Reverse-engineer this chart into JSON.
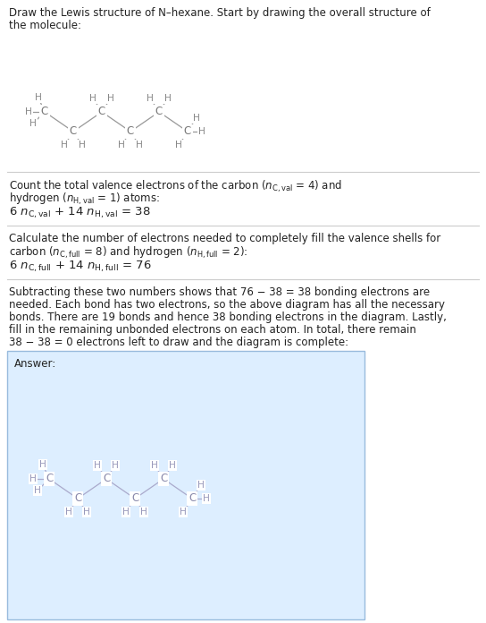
{
  "title": "Draw the Lewis structure of N-hexane. Start by drawing the overall structure of the molecule:",
  "s1_line1": "Count the total valence electrons of the carbon ($n_{\\mathrm{C,val}}$ = 4) and",
  "s1_line2": "hydrogen ($n_{\\mathrm{H,val}}$ = 1) atoms:",
  "s1_eq": "6 $n_{\\mathrm{C,val}}$ + 14 $n_{\\mathrm{H,val}}$ = 38",
  "s2_line1": "Calculate the number of electrons needed to completely fill the valence shells for",
  "s2_line2": "carbon ($n_{\\mathrm{C,full}}$ = 8) and hydrogen ($n_{\\mathrm{H,full}}$ = 2):",
  "s2_eq": "6 $n_{\\mathrm{C,full}}$ + 14 $n_{\\mathrm{H,full}}$ = 76",
  "s3_text": "Subtracting these two numbers shows that 76 − 38 = 38 bonding electrons are needed. Each bond has two electrons, so the above diagram has all the necessary bonds. There are 19 bonds and hence 38 bonding electrons in the diagram. Lastly, fill in the remaining unbonded electrons on each atom. In total, there remain 38 − 38 = 0 electrons left to draw and the diagram is complete:",
  "answer_label": "Answer:",
  "bg_color": "#ffffff",
  "answer_bg_color": "#ddeeff",
  "answer_border": "#99bbdd",
  "sep_color": "#cccccc",
  "text_color": "#222222",
  "mol_bond_color": "#999999",
  "mol_atom_color": "#777777",
  "mol_H_color": "#888888"
}
